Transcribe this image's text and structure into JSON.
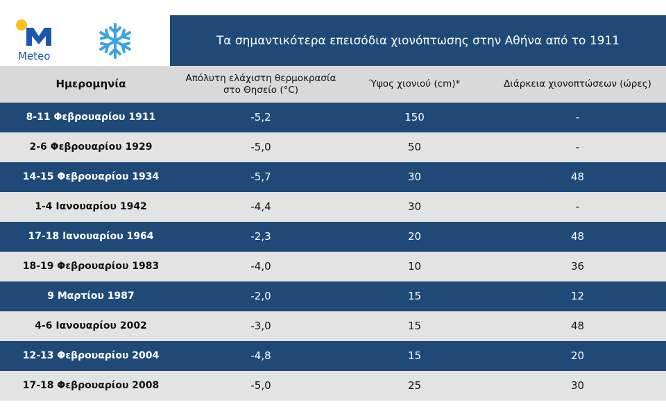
{
  "header": {
    "logo_text": "Meteo",
    "title": "Τα σημαντικότερα επεισόδια χιονόπτωσης στην Αθήνα από το 1911"
  },
  "table": {
    "columns": [
      "Ημερομηνία",
      "Απόλυτη ελάχιστη θερμοκρασία στο Θησείο (°C)",
      "Ύψος χιονιού (cm)*",
      "Διάρκεια χιονοπτώσεων (ώρες)"
    ],
    "rows": [
      [
        "8-11 Φεβρουαρίου 1911",
        "-5,2",
        "150",
        "-"
      ],
      [
        "2-6 Φεβρουαρίου 1929",
        "-5,0",
        "50",
        "-"
      ],
      [
        "14-15 Φεβρουαρίου 1934",
        "-5,7",
        "30",
        "48"
      ],
      [
        "1-4 Ιανουαρίου 1942",
        "-4,4",
        "30",
        "-"
      ],
      [
        "17-18 Ιανουαρίου 1964",
        "-2,3",
        "20",
        "48"
      ],
      [
        "18-19 Φεβρουαρίου 1983",
        "-4,0",
        "10",
        "36"
      ],
      [
        "9 Μαρτίου 1987",
        "-2,0",
        "15",
        "12"
      ],
      [
        "4-6 Ιανουαρίου 2002",
        "-3,0",
        "15",
        "48"
      ],
      [
        "12-13 Φεβρουαρίου 2004",
        "-4,8",
        "15",
        "20"
      ],
      [
        "17-18 Φεβρουαρίου 2008",
        "-5,0",
        "25",
        "30"
      ]
    ]
  }
}
